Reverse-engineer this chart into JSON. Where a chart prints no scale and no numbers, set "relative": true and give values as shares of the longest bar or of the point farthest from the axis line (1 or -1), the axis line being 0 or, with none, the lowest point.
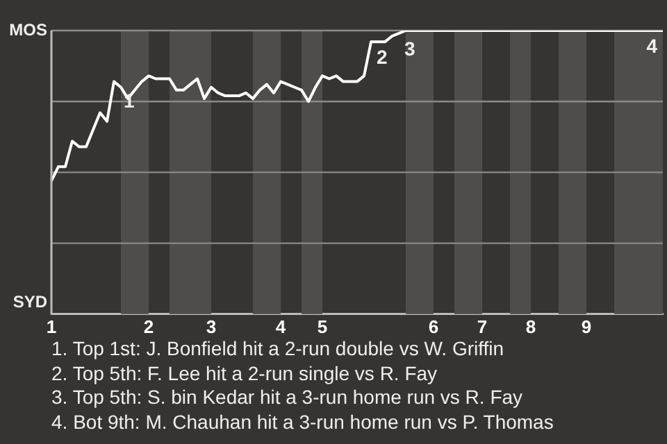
{
  "chart_data": {
    "type": "line",
    "relative": true,
    "categories": [
      "1",
      null,
      null,
      null,
      null,
      null,
      null,
      null,
      null,
      null,
      null,
      null,
      null,
      null,
      "2",
      null,
      null,
      null,
      null,
      null,
      null,
      null,
      null,
      "3",
      null,
      null,
      null,
      null,
      null,
      null,
      null,
      null,
      null,
      "4",
      null,
      null,
      null,
      null,
      null,
      "5",
      null,
      null,
      null,
      null,
      null,
      null,
      null,
      null,
      null,
      null,
      null,
      null,
      null,
      null,
      null,
      "6",
      null,
      null,
      null,
      null,
      null,
      null,
      "7",
      null,
      null,
      null,
      null,
      null,
      null,
      "8",
      null,
      null,
      null,
      null,
      null,
      null,
      null,
      "9",
      null,
      null,
      null,
      null,
      null,
      null,
      null,
      null,
      null,
      null,
      null
    ],
    "series": [
      {
        "color": "#ffffff",
        "values": [
          0.47,
          0.52,
          0.52,
          0.61,
          0.59,
          0.59,
          0.65,
          0.71,
          0.68,
          0.82,
          0.8,
          0.76,
          0.79,
          0.82,
          0.84,
          0.83,
          0.83,
          0.83,
          0.79,
          0.79,
          0.81,
          0.83,
          0.76,
          0.8,
          0.78,
          0.77,
          0.77,
          0.77,
          0.78,
          0.76,
          0.79,
          0.81,
          0.78,
          0.82,
          0.81,
          0.8,
          0.79,
          0.75,
          0.8,
          0.84,
          0.83,
          0.84,
          0.82,
          0.82,
          0.82,
          0.84,
          0.96,
          0.96,
          0.96,
          0.98,
          0.99,
          1,
          1,
          1,
          1,
          1,
          1,
          1,
          1,
          1,
          1,
          1,
          1,
          1,
          1,
          1,
          1,
          1,
          1,
          1,
          1,
          1,
          1,
          1,
          1,
          1,
          1,
          1,
          1,
          1,
          1,
          1,
          1,
          1,
          1,
          1,
          1,
          1,
          1
        ]
      }
    ],
    "ref_lines": [
      {
        "axis": "y",
        "value": 0.25,
        "color": "#8a8a88"
      },
      {
        "axis": "y",
        "value": 0.5,
        "color": "#8a8a88"
      },
      {
        "axis": "y",
        "value": 0.75,
        "color": "#8a8a88"
      },
      {
        "axis": "y",
        "value": 1,
        "color": "#8a8a88"
      }
    ],
    "legend": false,
    "marker": "none",
    "annotations": [
      "MOS",
      "SYD",
      "1",
      "2",
      "3",
      "4",
      "1. Top 1st: J. Bonfield hit a 2-run double vs W. Griffin",
      "2. Top 5th: F. Lee hit a 2-run single vs R. Fay",
      "3. Top 5th: S. bin Kedar hit a 3-run home run vs R. Fay",
      "4. Bot 9th: M. Chauhan hit a 3-run home run vs P. Thomas"
    ]
  }
}
